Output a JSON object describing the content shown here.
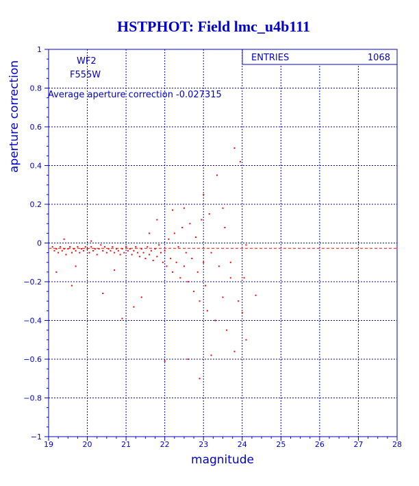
{
  "chart_data": {
    "type": "scatter",
    "title": "HSTPHOT: Field lmc_u4b111",
    "xlabel": "magnitude",
    "ylabel": "aperture correction",
    "xlim": [
      19,
      28
    ],
    "ylim": [
      -1,
      1
    ],
    "x_ticks": [
      "19",
      "20",
      "21",
      "22",
      "23",
      "24",
      "25",
      "26",
      "27",
      "28"
    ],
    "y_ticks": [
      "-1",
      "-0.8",
      "-0.6",
      "-0.4",
      "-0.2",
      "0",
      "0.2",
      "0.4",
      "0.6",
      "0.8",
      "1"
    ],
    "grid": true,
    "annotations": {
      "chip": "WF2",
      "filter": "F555W",
      "average_text": "Average aperture correction -0.027315"
    },
    "stats_box": {
      "label": "ENTRIES",
      "value": "1068"
    },
    "average_line": {
      "y": -0.027315,
      "x_range": [
        19,
        28
      ]
    },
    "point_color": "#ff0000",
    "axis_color": "#0000cc",
    "points": [
      [
        19.1,
        -0.02
      ],
      [
        19.15,
        -0.04
      ],
      [
        19.2,
        -0.03
      ],
      [
        19.25,
        -0.05
      ],
      [
        19.3,
        -0.02
      ],
      [
        19.35,
        -0.04
      ],
      [
        19.4,
        -0.03
      ],
      [
        19.45,
        -0.06
      ],
      [
        19.5,
        -0.03
      ],
      [
        19.55,
        -0.02
      ],
      [
        19.6,
        -0.05
      ],
      [
        19.65,
        -0.03
      ],
      [
        19.7,
        -0.04
      ],
      [
        19.75,
        -0.02
      ],
      [
        19.8,
        -0.05
      ],
      [
        19.85,
        -0.03
      ],
      [
        19.9,
        -0.04
      ],
      [
        19.95,
        -0.02
      ],
      [
        20.0,
        -0.03
      ],
      [
        20.05,
        -0.05
      ],
      [
        20.1,
        -0.02
      ],
      [
        20.15,
        -0.04
      ],
      [
        20.2,
        -0.03
      ],
      [
        20.25,
        -0.06
      ],
      [
        20.3,
        -0.03
      ],
      [
        20.35,
        -0.01
      ],
      [
        20.4,
        -0.04
      ],
      [
        20.45,
        -0.02
      ],
      [
        20.5,
        -0.05
      ],
      [
        20.55,
        -0.03
      ],
      [
        20.6,
        -0.04
      ],
      [
        20.65,
        -0.02
      ],
      [
        20.7,
        -0.05
      ],
      [
        20.75,
        -0.03
      ],
      [
        20.8,
        -0.04
      ],
      [
        20.85,
        -0.06
      ],
      [
        20.9,
        -0.03
      ],
      [
        20.95,
        -0.05
      ],
      [
        21.0,
        -0.02
      ],
      [
        21.05,
        -0.04
      ],
      [
        21.1,
        -0.03
      ],
      [
        21.15,
        -0.06
      ],
      [
        21.2,
        -0.04
      ],
      [
        21.25,
        -0.02
      ],
      [
        21.3,
        -0.05
      ],
      [
        21.35,
        -0.07
      ],
      [
        21.4,
        -0.03
      ],
      [
        21.45,
        -0.05
      ],
      [
        21.5,
        -0.08
      ],
      [
        21.55,
        -0.02
      ],
      [
        21.6,
        -0.06
      ],
      [
        21.65,
        -0.04
      ],
      [
        21.7,
        -0.09
      ],
      [
        21.75,
        -0.03
      ],
      [
        21.8,
        -0.07
      ],
      [
        21.85,
        -0.01
      ],
      [
        21.9,
        -0.05
      ],
      [
        21.95,
        -0.1
      ],
      [
        22.0,
        -0.04
      ],
      [
        22.05,
        -0.12
      ],
      [
        22.1,
        0.02
      ],
      [
        22.15,
        -0.08
      ],
      [
        22.2,
        -0.15
      ],
      [
        22.25,
        0.05
      ],
      [
        22.3,
        -0.1
      ],
      [
        22.35,
        -0.02
      ],
      [
        22.4,
        -0.18
      ],
      [
        22.45,
        0.08
      ],
      [
        22.5,
        -0.12
      ],
      [
        22.55,
        -0.05
      ],
      [
        22.6,
        -0.2
      ],
      [
        22.65,
        0.1
      ],
      [
        22.7,
        -0.08
      ],
      [
        22.75,
        -0.25
      ],
      [
        22.8,
        0.03
      ],
      [
        22.85,
        -0.15
      ],
      [
        22.9,
        -0.3
      ],
      [
        22.95,
        0.12
      ],
      [
        23.0,
        -0.1
      ],
      [
        23.05,
        -0.22
      ],
      [
        23.1,
        -0.35
      ],
      [
        23.15,
        0.15
      ],
      [
        23.2,
        -0.05
      ],
      [
        23.3,
        -0.4
      ],
      [
        23.35,
        0.35
      ],
      [
        23.4,
        -0.12
      ],
      [
        23.5,
        -0.28
      ],
      [
        23.55,
        0.08
      ],
      [
        23.6,
        -0.45
      ],
      [
        23.7,
        -0.18
      ],
      [
        23.8,
        0.49
      ],
      [
        23.8,
        -0.56
      ],
      [
        23.9,
        -0.3
      ],
      [
        23.95,
        0.42
      ],
      [
        24.0,
        -0.36
      ],
      [
        24.1,
        -0.5
      ],
      [
        24.1,
        -0.01
      ],
      [
        24.35,
        -0.27
      ],
      [
        23.2,
        -0.58
      ],
      [
        22.9,
        -0.7
      ],
      [
        22.0,
        -0.61
      ],
      [
        21.4,
        -0.28
      ],
      [
        20.4,
        -0.26
      ],
      [
        19.6,
        -0.22
      ],
      [
        19.2,
        -0.15
      ],
      [
        19.7,
        -0.12
      ],
      [
        20.7,
        -0.14
      ],
      [
        20.9,
        -0.39
      ],
      [
        21.2,
        -0.33
      ],
      [
        22.6,
        -0.6
      ],
      [
        23.7,
        -0.1
      ],
      [
        22.2,
        0.17
      ],
      [
        21.8,
        0.12
      ],
      [
        21.6,
        0.05
      ],
      [
        19.4,
        0.02
      ],
      [
        20.1,
        0.01
      ],
      [
        22.5,
        0.18
      ],
      [
        23.0,
        0.25
      ],
      [
        23.5,
        0.18
      ],
      [
        24.05,
        -0.18
      ]
    ]
  }
}
